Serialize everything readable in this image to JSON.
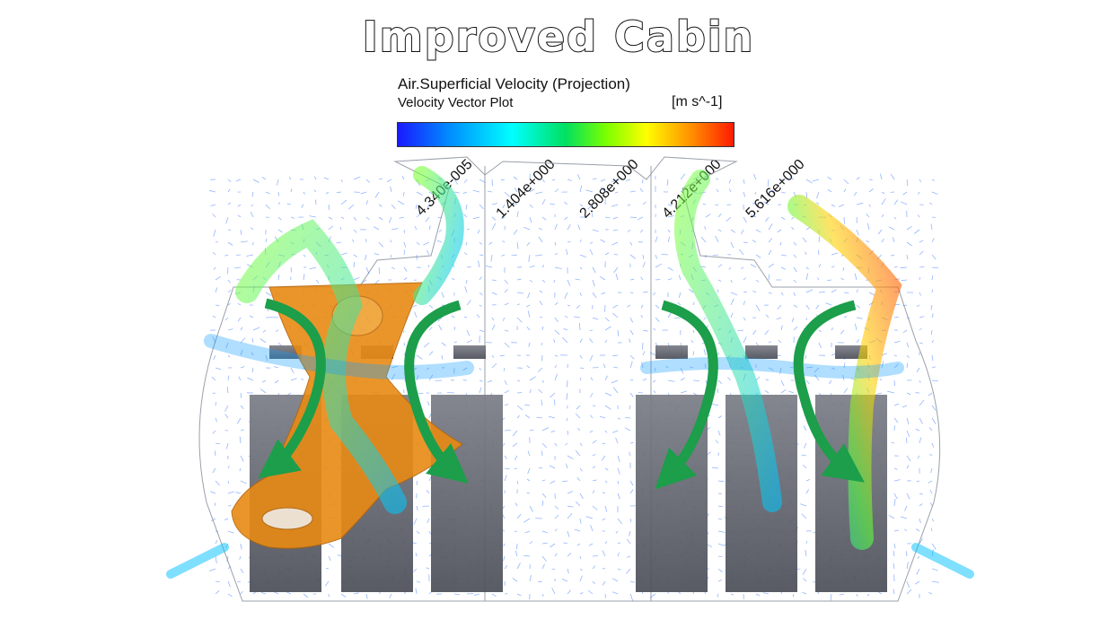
{
  "title": "Improved Cabin",
  "legend": {
    "variable": "Air.Superficial Velocity (Projection)",
    "subtitle": "Velocity Vector Plot",
    "units": "[m s^-1]",
    "ticks": [
      "4.340e-005",
      "1.404e+000",
      "2.808e+000",
      "4.212e+000",
      "5.616e+000"
    ]
  },
  "colors": {
    "min": "#1a1aff",
    "mid": "#00e060",
    "max": "#ff1a00",
    "flow_arrow": "#1c9e4a",
    "isosurface": "#e88a14",
    "seat": "#6b6e78"
  },
  "icons": [
    "circulation-arrow-icon"
  ]
}
